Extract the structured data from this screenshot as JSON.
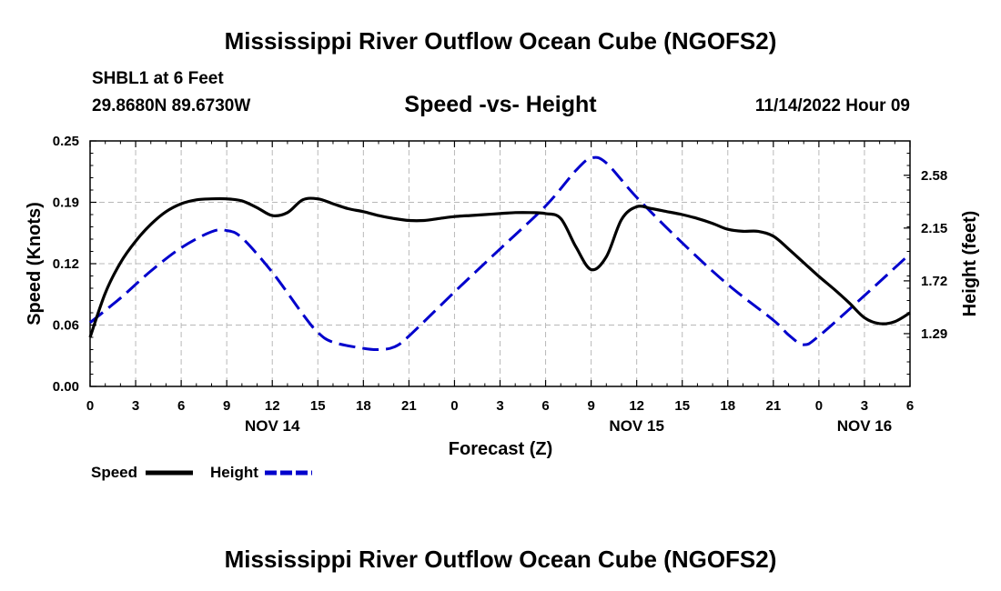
{
  "header": {
    "title": "Mississippi River Outflow Ocean Cube (NGOFS2)",
    "station": "SHBL1 at 6 Feet",
    "coordinates": "29.8680N  89.6730W",
    "subtitle": "Speed -vs- Height",
    "datestamp": "11/14/2022 Hour 09"
  },
  "footer": {
    "title": "Mississippi River Outflow Ocean Cube (NGOFS2)"
  },
  "chart_data": {
    "type": "line",
    "xlabel": "Forecast (Z)",
    "ylabel_left": "Speed (Knots)",
    "ylabel_right": "Height (feet)",
    "x_range": [
      0,
      54
    ],
    "x_ticks": [
      {
        "x": 0,
        "label": "0"
      },
      {
        "x": 3,
        "label": "3"
      },
      {
        "x": 6,
        "label": "6"
      },
      {
        "x": 9,
        "label": "9"
      },
      {
        "x": 12,
        "label": "12"
      },
      {
        "x": 15,
        "label": "15"
      },
      {
        "x": 18,
        "label": "18"
      },
      {
        "x": 21,
        "label": "21"
      },
      {
        "x": 24,
        "label": "0"
      },
      {
        "x": 27,
        "label": "3"
      },
      {
        "x": 30,
        "label": "6"
      },
      {
        "x": 33,
        "label": "9"
      },
      {
        "x": 36,
        "label": "12"
      },
      {
        "x": 39,
        "label": "15"
      },
      {
        "x": 42,
        "label": "18"
      },
      {
        "x": 45,
        "label": "21"
      },
      {
        "x": 48,
        "label": "0"
      },
      {
        "x": 51,
        "label": "3"
      },
      {
        "x": 54,
        "label": "6"
      }
    ],
    "date_labels": [
      {
        "x": 12,
        "label": "NOV 14"
      },
      {
        "x": 36,
        "label": "NOV 15"
      },
      {
        "x": 51,
        "label": "NOV 16"
      }
    ],
    "y_left": {
      "range": [
        0,
        0.25
      ],
      "ticks": [
        {
          "value": 0.0,
          "label": "0.00"
        },
        {
          "value": 0.0625,
          "label": "0.06"
        },
        {
          "value": 0.125,
          "label": "0.12"
        },
        {
          "value": 0.1875,
          "label": "0.19"
        },
        {
          "value": 0.25,
          "label": "0.25"
        }
      ]
    },
    "y_right": {
      "range": [
        0.86,
        2.86
      ],
      "ticks": [
        {
          "value": 1.29,
          "label": "1.29"
        },
        {
          "value": 1.72,
          "label": "1.72"
        },
        {
          "value": 2.15,
          "label": "2.15"
        },
        {
          "value": 2.58,
          "label": "2.58"
        }
      ]
    },
    "series": [
      {
        "name": "Speed",
        "axis": "left",
        "color": "#000000",
        "dash": "solid",
        "x": [
          0,
          1,
          2,
          3,
          4,
          5,
          6,
          7,
          8,
          9,
          10,
          11,
          12,
          13,
          14,
          15,
          16,
          17,
          18,
          19,
          20,
          21,
          22,
          23,
          24,
          25,
          26,
          27,
          28,
          29,
          30,
          31,
          32,
          33,
          34,
          35,
          36,
          37,
          38,
          39,
          40,
          41,
          42,
          43,
          44,
          45,
          46,
          47,
          48,
          49,
          50,
          51,
          52,
          53,
          54
        ],
        "values": [
          0.05,
          0.095,
          0.126,
          0.148,
          0.165,
          0.178,
          0.186,
          0.19,
          0.191,
          0.191,
          0.189,
          0.182,
          0.174,
          0.177,
          0.19,
          0.191,
          0.186,
          0.181,
          0.178,
          0.174,
          0.171,
          0.169,
          0.169,
          0.171,
          0.173,
          0.174,
          0.175,
          0.176,
          0.177,
          0.177,
          0.176,
          0.171,
          0.142,
          0.119,
          0.132,
          0.17,
          0.183,
          0.181,
          0.178,
          0.175,
          0.171,
          0.166,
          0.16,
          0.158,
          0.158,
          0.153,
          0.14,
          0.126,
          0.112,
          0.099,
          0.085,
          0.07,
          0.064,
          0.066,
          0.075
        ]
      },
      {
        "name": "Height",
        "axis": "right",
        "color": "#0000cc",
        "dash": "dashed",
        "x": [
          0,
          2,
          4,
          6,
          8,
          9,
          10,
          12,
          14,
          15,
          16,
          18,
          19,
          20,
          21,
          24,
          27,
          30,
          32,
          33,
          34,
          36,
          39,
          42,
          45,
          46,
          47,
          48,
          51,
          54
        ],
        "values": [
          1.38,
          1.58,
          1.8,
          1.99,
          2.12,
          2.13,
          2.07,
          1.79,
          1.45,
          1.3,
          1.22,
          1.17,
          1.16,
          1.18,
          1.27,
          1.63,
          1.98,
          2.33,
          2.62,
          2.72,
          2.68,
          2.4,
          2.03,
          1.69,
          1.4,
          1.28,
          1.2,
          1.27,
          1.6,
          1.94
        ]
      }
    ],
    "legend": [
      {
        "name": "Speed",
        "color": "#000000",
        "dash": "solid"
      },
      {
        "name": "Height",
        "color": "#0000cc",
        "dash": "dashed"
      }
    ],
    "grid": true
  }
}
